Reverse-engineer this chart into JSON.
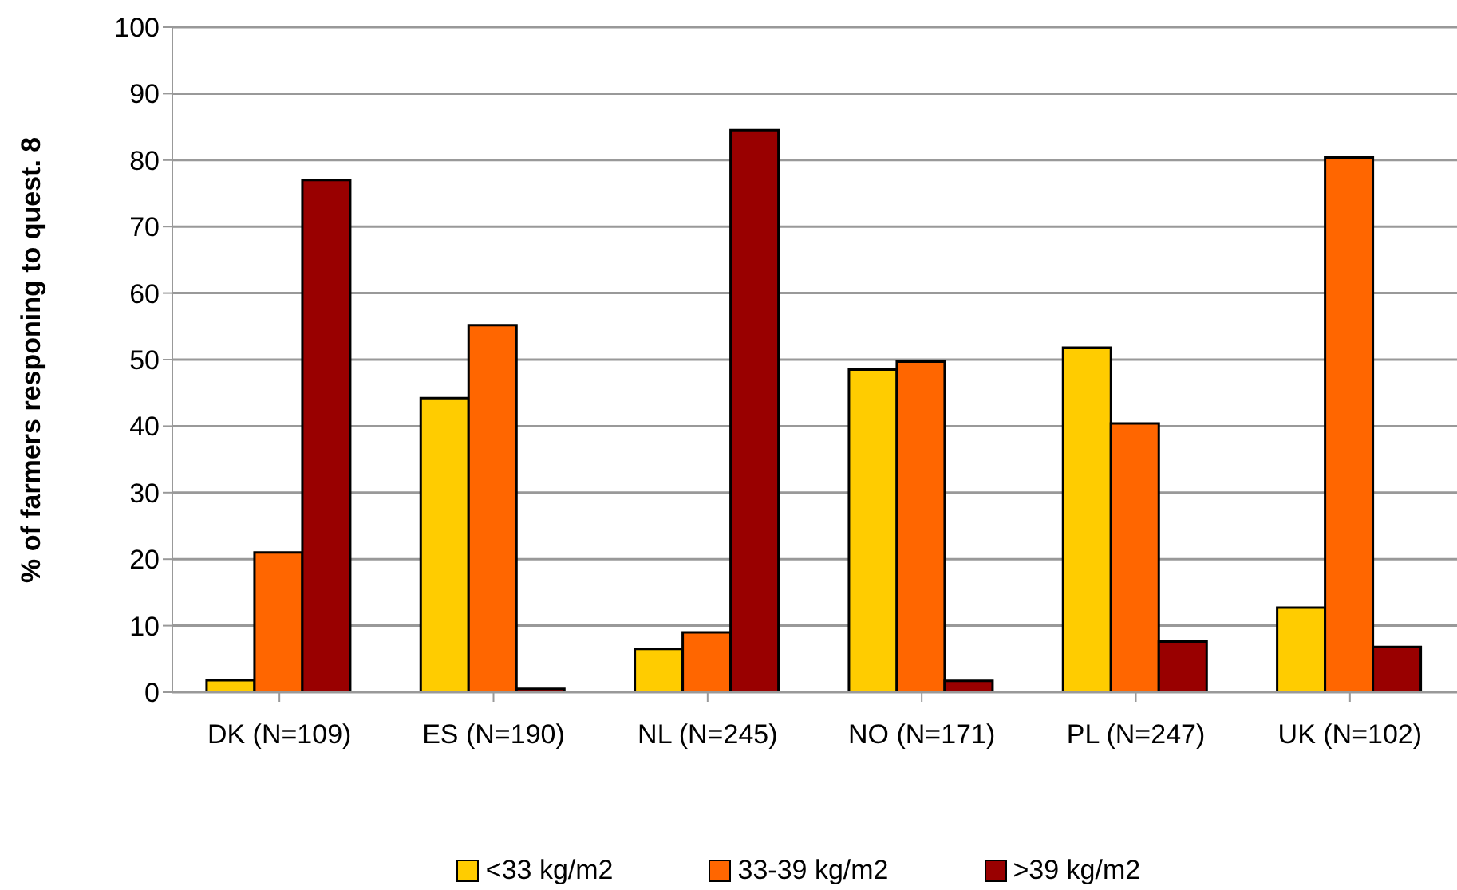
{
  "chart_data": {
    "type": "bar",
    "ylabel": "% of farmers responing to quest. 8",
    "categories": [
      "DK (N=109)",
      "ES (N=190)",
      "NL (N=245)",
      "NO (N=171)",
      "PL (N=247)",
      "UK (N=102)"
    ],
    "series": [
      {
        "name": "<33 kg/m2",
        "color": "#ffcc00",
        "values": [
          1.8,
          44.2,
          6.5,
          48.5,
          51.8,
          12.7
        ]
      },
      {
        "name": "33-39 kg/m2",
        "color": "#ff6600",
        "values": [
          21,
          55.2,
          9,
          49.7,
          40.4,
          80.4
        ]
      },
      {
        "name": ">39 kg/m2",
        "color": "#990000",
        "values": [
          77,
          0.5,
          84.5,
          1.7,
          7.6,
          6.8
        ]
      }
    ],
    "ylim": [
      0,
      100
    ],
    "yticks": [
      0,
      10,
      20,
      30,
      40,
      50,
      60,
      70,
      80,
      90,
      100
    ],
    "grid": "y",
    "legend": "bottom"
  }
}
